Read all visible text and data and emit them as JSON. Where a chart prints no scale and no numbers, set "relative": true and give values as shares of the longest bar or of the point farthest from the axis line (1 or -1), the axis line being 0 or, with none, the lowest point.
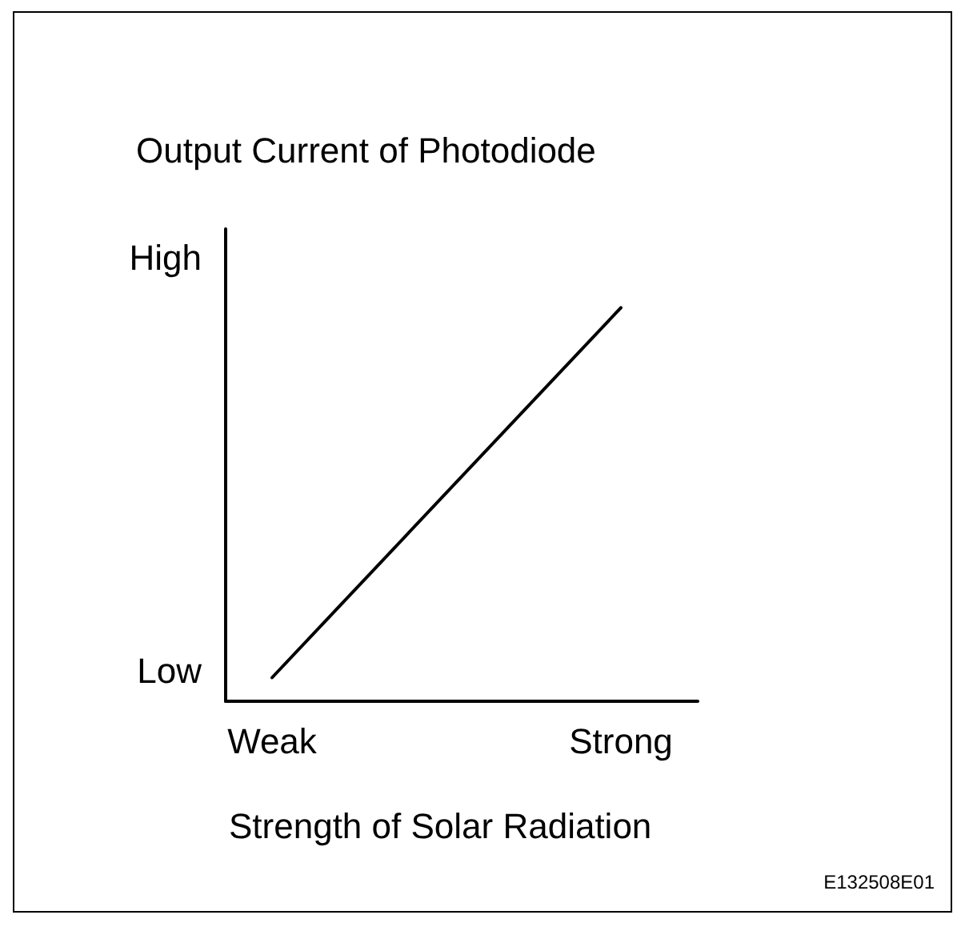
{
  "chart_data": {
    "type": "line",
    "title": "Output Current of Photodiode",
    "xlabel": "Strength of Solar Radiation",
    "relative": true,
    "categories": [
      "Weak",
      "Strong"
    ],
    "series": [
      {
        "color": "#000000",
        "values": [
          0.06,
          1
        ]
      }
    ],
    "annotations": [
      "High",
      "Low",
      "E132508E01"
    ],
    "grid": false,
    "marker": "none",
    "line_style": "solid"
  }
}
